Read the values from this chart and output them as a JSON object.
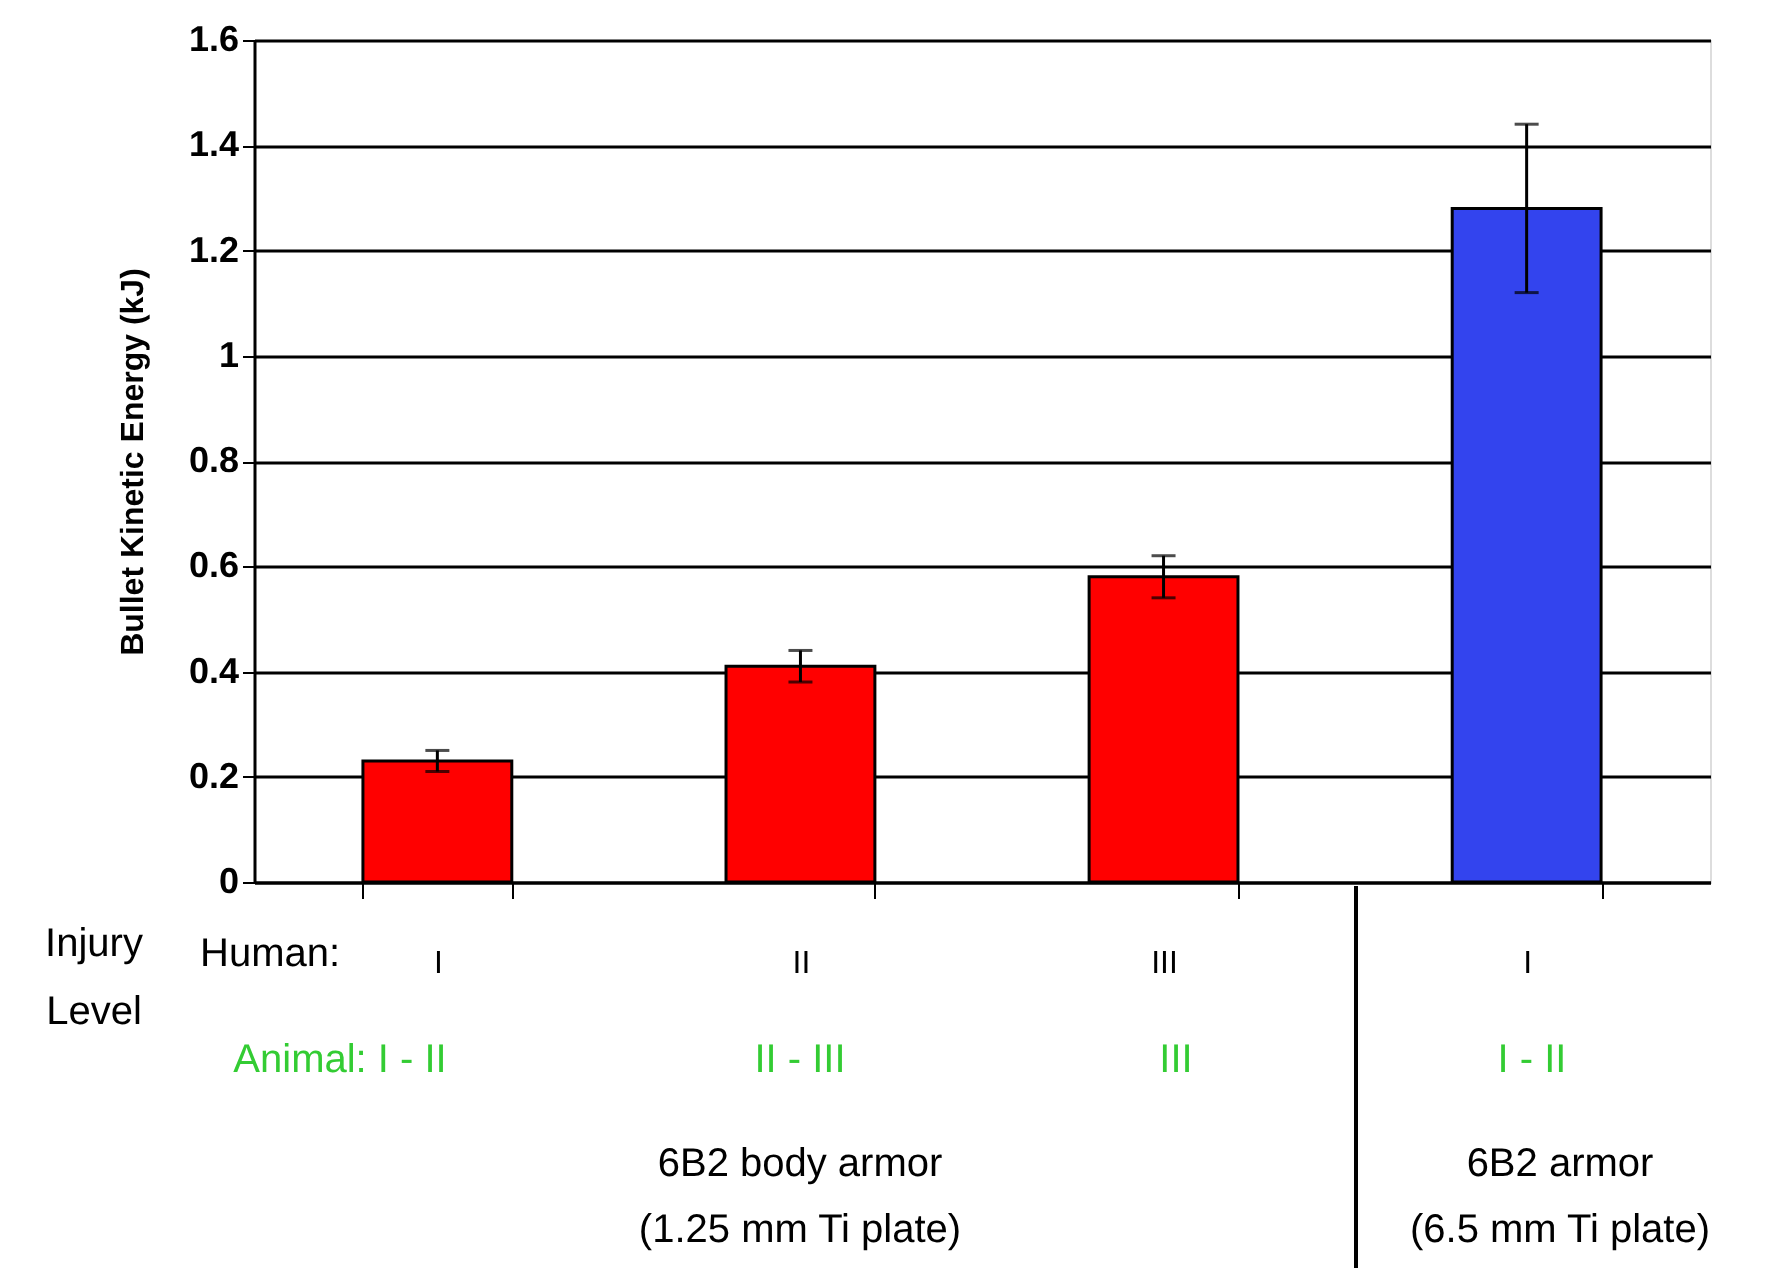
{
  "chart_data": {
    "type": "bar",
    "ylabel": "Bullet Kinetic Energy (kJ)",
    "categories": [
      "I",
      "II",
      "III",
      "I"
    ],
    "values": [
      0.23,
      0.41,
      0.58,
      1.28
    ],
    "errors": [
      0.02,
      0.03,
      0.04,
      0.16
    ],
    "colors": [
      "#ff0000",
      "#ff0000",
      "#ff0000",
      "#3344ee"
    ],
    "ylim": [
      0,
      1.6
    ],
    "yticks": [
      0,
      0.2,
      0.4,
      0.6,
      0.8,
      1,
      1.2,
      1.4,
      1.6
    ],
    "grid": "y",
    "annotations": [
      "Injury\nLevel",
      "Human:",
      "Animal: I - II",
      "II - III",
      "III",
      "I - II",
      "6B2 body armor\n(1.25 mm Ti plate)",
      "6B2 armor\n(6.5 mm Ti plate)"
    ]
  }
}
